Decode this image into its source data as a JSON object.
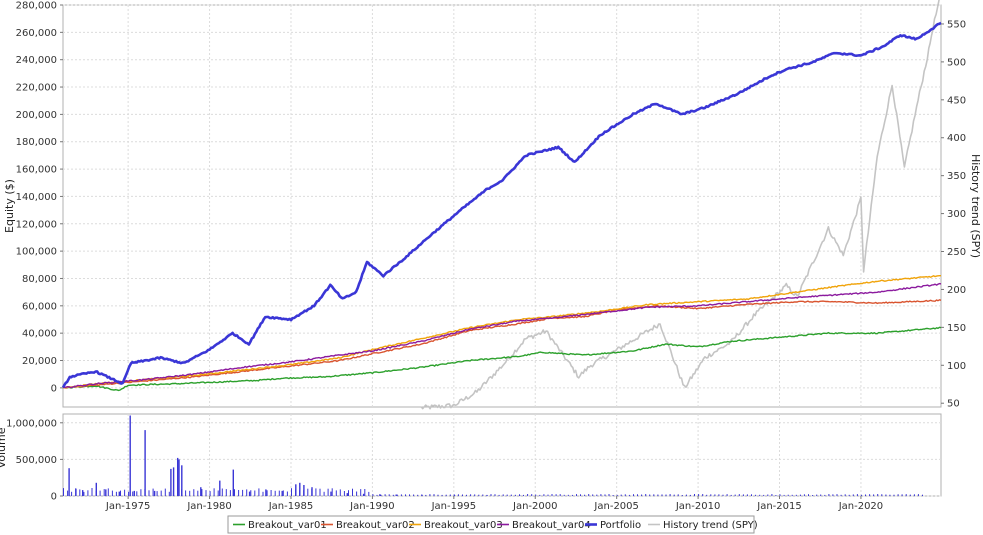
{
  "chart_data": [
    {
      "type": "line",
      "ylabel": "Equity ($)",
      "y2label": "History trend (SPY)",
      "x_range": [
        "1971-01",
        "2024-12"
      ],
      "ylim": [
        -14000,
        280000
      ],
      "y2lim": [
        45,
        575
      ],
      "grid": true,
      "yticks": [
        "0",
        "20,000",
        "40,000",
        "60,000",
        "80,000",
        "100,000",
        "120,000",
        "140,000",
        "160,000",
        "180,000",
        "200,000",
        "220,000",
        "240,000",
        "260,000",
        "280,000"
      ],
      "y2ticks": [
        "50",
        "100",
        "150",
        "200",
        "250",
        "300",
        "350",
        "400",
        "450",
        "500",
        "550"
      ],
      "xticks": [
        "Jan-1975",
        "Jan-1980",
        "Jan-1985",
        "Jan-1990",
        "Jan-1995",
        "Jan-2000",
        "Jan-2005",
        "Jan-2010",
        "Jan-2015",
        "Jan-2020"
      ],
      "series": [
        {
          "name": "Breakout_var01",
          "color": "#2ca02c",
          "axis": "left",
          "points": [
            [
              "1971-01",
              0
            ],
            [
              "1973-01",
              1500
            ],
            [
              "1974-06",
              -2000
            ],
            [
              "1975-01",
              2000
            ],
            [
              "1978-01",
              3000
            ],
            [
              "1980-01",
              4000
            ],
            [
              "1983-01",
              5500
            ],
            [
              "1984-06",
              7000
            ],
            [
              "1987-01",
              8000
            ],
            [
              "1990-01",
              11000
            ],
            [
              "1993-01",
              15000
            ],
            [
              "1996-01",
              20000
            ],
            [
              "1999-01",
              23000
            ],
            [
              "2000-06",
              26000
            ],
            [
              "2003-01",
              24000
            ],
            [
              "2006-01",
              27000
            ],
            [
              "2008-01",
              32000
            ],
            [
              "2010-01",
              30000
            ],
            [
              "2012-01",
              34000
            ],
            [
              "2015-01",
              37000
            ],
            [
              "2018-01",
              40000
            ],
            [
              "2021-01",
              40000
            ],
            [
              "2024-12",
              44000
            ]
          ]
        },
        {
          "name": "Breakout_var02",
          "color": "#d9542f",
          "axis": "left",
          "points": [
            [
              "1971-01",
              0
            ],
            [
              "1973-01",
              2000
            ],
            [
              "1976-01",
              5000
            ],
            [
              "1979-01",
              8000
            ],
            [
              "1982-01",
              12000
            ],
            [
              "1985-01",
              16000
            ],
            [
              "1988-01",
              20000
            ],
            [
              "1990-01",
              25000
            ],
            [
              "1993-01",
              32000
            ],
            [
              "1996-01",
              42000
            ],
            [
              "1999-01",
              47000
            ],
            [
              "2001-01",
              51000
            ],
            [
              "2003-01",
              52000
            ],
            [
              "2005-01",
              57000
            ],
            [
              "2007-06",
              60000
            ],
            [
              "2010-01",
              58000
            ],
            [
              "2013-01",
              61000
            ],
            [
              "2016-01",
              63000
            ],
            [
              "2018-06",
              63000
            ],
            [
              "2021-01",
              62000
            ],
            [
              "2024-12",
              64000
            ]
          ]
        },
        {
          "name": "Breakout_var03",
          "color": "#f0a30a",
          "axis": "left",
          "points": [
            [
              "1971-01",
              0
            ],
            [
              "1973-01",
              3000
            ],
            [
              "1976-01",
              6000
            ],
            [
              "1979-01",
              9000
            ],
            [
              "1982-01",
              13000
            ],
            [
              "1985-01",
              17000
            ],
            [
              "1988-01",
              22000
            ],
            [
              "1990-01",
              28000
            ],
            [
              "1993-01",
              36000
            ],
            [
              "1996-01",
              44000
            ],
            [
              "1999-01",
              50000
            ],
            [
              "2001-01",
              52000
            ],
            [
              "2004-01",
              56000
            ],
            [
              "2007-01",
              61000
            ],
            [
              "2010-01",
              63000
            ],
            [
              "2013-01",
              65000
            ],
            [
              "2016-01",
              70000
            ],
            [
              "2018-06",
              74000
            ],
            [
              "2021-01",
              78000
            ],
            [
              "2024-12",
              82000
            ]
          ]
        },
        {
          "name": "Breakout_var04",
          "color": "#8b1a9e",
          "axis": "left",
          "points": [
            [
              "1971-01",
              0
            ],
            [
              "1973-01",
              3000
            ],
            [
              "1976-01",
              6000
            ],
            [
              "1979-01",
              10000
            ],
            [
              "1982-01",
              15000
            ],
            [
              "1985-01",
              19000
            ],
            [
              "1988-01",
              24000
            ],
            [
              "1990-01",
              27000
            ],
            [
              "1993-01",
              34000
            ],
            [
              "1996-01",
              43000
            ],
            [
              "1999-01",
              49000
            ],
            [
              "2001-01",
              51000
            ],
            [
              "2004-01",
              55000
            ],
            [
              "2007-01",
              59000
            ],
            [
              "2010-01",
              60000
            ],
            [
              "2013-01",
              63000
            ],
            [
              "2016-01",
              66000
            ],
            [
              "2018-06",
              68000
            ],
            [
              "2021-01",
              70000
            ],
            [
              "2024-12",
              76000
            ]
          ]
        },
        {
          "name": "Portfolio",
          "color": "#3a36d6",
          "axis": "left",
          "points": [
            [
              "1971-01",
              0
            ],
            [
              "1971-06",
              8000
            ],
            [
              "1973-01",
              12000
            ],
            [
              "1974-09",
              3000
            ],
            [
              "1975-03",
              18000
            ],
            [
              "1977-01",
              22000
            ],
            [
              "1978-06",
              18000
            ],
            [
              "1980-01",
              28000
            ],
            [
              "1981-06",
              40000
            ],
            [
              "1982-06",
              32000
            ],
            [
              "1983-06",
              52000
            ],
            [
              "1985-01",
              50000
            ],
            [
              "1986-06",
              60000
            ],
            [
              "1987-06",
              75000
            ],
            [
              "1988-03",
              65000
            ],
            [
              "1989-01",
              70000
            ],
            [
              "1989-09",
              92000
            ],
            [
              "1990-09",
              82000
            ],
            [
              "1992-01",
              95000
            ],
            [
              "1993-06",
              110000
            ],
            [
              "1994-06",
              120000
            ],
            [
              "1995-06",
              130000
            ],
            [
              "1997-01",
              145000
            ],
            [
              "1998-01",
              152000
            ],
            [
              "1999-06",
              170000
            ],
            [
              "2001-06",
              176000
            ],
            [
              "2002-06",
              165000
            ],
            [
              "2004-01",
              185000
            ],
            [
              "2006-01",
              200000
            ],
            [
              "2007-06",
              208000
            ],
            [
              "2009-01",
              200000
            ],
            [
              "2010-06",
              205000
            ],
            [
              "2012-06",
              215000
            ],
            [
              "2014-06",
              228000
            ],
            [
              "2015-06",
              233000
            ],
            [
              "2017-01",
              238000
            ],
            [
              "2018-06",
              245000
            ],
            [
              "2020-01",
              243000
            ],
            [
              "2021-06",
              250000
            ],
            [
              "2022-06",
              258000
            ],
            [
              "2023-06",
              255000
            ],
            [
              "2024-12",
              267000
            ]
          ]
        },
        {
          "name": "History trend (SPY)",
          "color": "#c4c4c4",
          "axis": "right",
          "points": [
            [
              "1993-01",
              44
            ],
            [
              "1995-01",
              47
            ],
            [
              "1996-06",
              65
            ],
            [
              "1998-01",
              100
            ],
            [
              "1999-06",
              135
            ],
            [
              "2000-09",
              145
            ],
            [
              "2002-09",
              85
            ],
            [
              "2003-06",
              100
            ],
            [
              "2005-01",
              120
            ],
            [
              "2007-09",
              155
            ],
            [
              "2009-03",
              70
            ],
            [
              "2010-06",
              110
            ],
            [
              "2012-01",
              130
            ],
            [
              "2013-06",
              165
            ],
            [
              "2015-06",
              205
            ],
            [
              "2016-02",
              190
            ],
            [
              "2018-01",
              280
            ],
            [
              "2018-12",
              245
            ],
            [
              "2020-01",
              320
            ],
            [
              "2020-03",
              225
            ],
            [
              "2021-01",
              375
            ],
            [
              "2021-12",
              470
            ],
            [
              "2022-09",
              360
            ],
            [
              "2023-06",
              440
            ],
            [
              "2024-03",
              515
            ],
            [
              "2024-06",
              545
            ],
            [
              "2024-12",
              590
            ]
          ]
        }
      ]
    },
    {
      "type": "bar",
      "ylabel": "Volume",
      "ylim": [
        0,
        1120000
      ],
      "yticks": [
        "0",
        "500,000",
        "1,000,000"
      ],
      "color": "#3a36d6",
      "spikes": [
        [
          "1971-05",
          380000
        ],
        [
          "1971-10",
          100000
        ],
        [
          "1972-03",
          80000
        ],
        [
          "1973-01",
          180000
        ],
        [
          "1973-08",
          90000
        ],
        [
          "1974-06",
          60000
        ],
        [
          "1975-02",
          1100000
        ],
        [
          "1975-05",
          70000
        ],
        [
          "1976-01",
          900000
        ],
        [
          "1976-08",
          70000
        ],
        [
          "1977-08",
          370000
        ],
        [
          "1977-10",
          390000
        ],
        [
          "1978-01",
          520000
        ],
        [
          "1978-02",
          500000
        ],
        [
          "1978-04",
          420000
        ],
        [
          "1979-06",
          120000
        ],
        [
          "1980-08",
          210000
        ],
        [
          "1981-06",
          360000
        ],
        [
          "1982-06",
          60000
        ],
        [
          "1983-06",
          90000
        ],
        [
          "1984-06",
          70000
        ],
        [
          "1985-04",
          160000
        ],
        [
          "1985-07",
          180000
        ],
        [
          "1985-10",
          150000
        ],
        [
          "1986-04",
          120000
        ],
        [
          "1987-06",
          60000
        ],
        [
          "1988-06",
          40000
        ],
        [
          "1989-06",
          30000
        ],
        [
          "1990-06",
          25000
        ],
        [
          "1991-06",
          20000
        ],
        [
          "1993-01",
          15000
        ],
        [
          "1995-01",
          12000
        ],
        [
          "1997-01",
          10000
        ],
        [
          "1999-01",
          10000
        ]
      ]
    }
  ],
  "legend": {
    "items": [
      {
        "label": "Breakout_var01",
        "color": "#2ca02c"
      },
      {
        "label": "Breakout_var02",
        "color": "#d9542f"
      },
      {
        "label": "Breakout_var03",
        "color": "#f0a30a"
      },
      {
        "label": "Breakout_var04",
        "color": "#8b1a9e"
      },
      {
        "label": "Portfolio",
        "color": "#3a36d6"
      },
      {
        "label": "History trend (SPY)",
        "color": "#c4c4c4"
      }
    ]
  }
}
